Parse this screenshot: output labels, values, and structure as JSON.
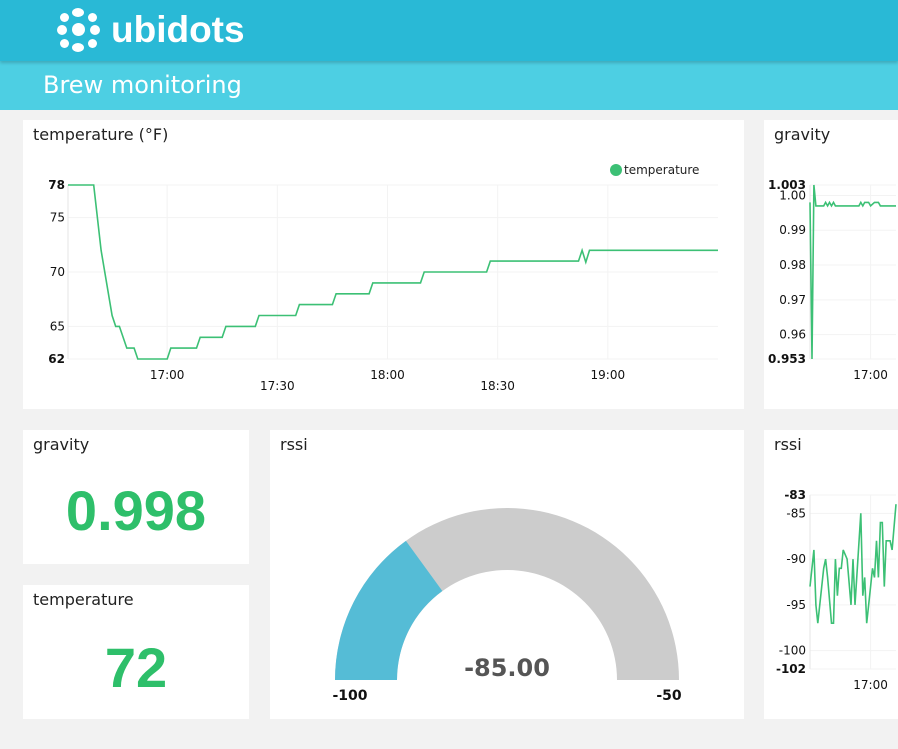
{
  "header": {
    "logo_text": "ubidots",
    "dashboard_title": "Brew monitoring",
    "bar_color": "#29b9d6",
    "subbar_color": "#4dcfe3"
  },
  "widgets": {
    "temperature_chart": {
      "title": "temperature (°F)",
      "legend": "temperature"
    },
    "gravity_chart": {
      "title": "gravity"
    },
    "gravity_value": {
      "title": "gravity",
      "value": "0.998"
    },
    "temperature_value": {
      "title": "temperature",
      "value": "72"
    },
    "rssi_gauge": {
      "title": "rssi",
      "value": "-85.00",
      "min_label": "-100",
      "max_label": "-50",
      "min": -100,
      "max": -50,
      "fill": -85,
      "fill_color": "#55bcd6",
      "track_color": "#cccccc"
    },
    "rssi_chart": {
      "title": "rssi"
    }
  },
  "colors": {
    "line": "#3cc075",
    "value_text": "#2ebf6a"
  },
  "chart_data": [
    {
      "type": "line",
      "title": "temperature (°F)",
      "legend": [
        "temperature"
      ],
      "legend_position": "top-right",
      "xlim": [
        "16:33",
        "19:30"
      ],
      "ylim": [
        62,
        78
      ],
      "yticks": [
        {
          "v": 78,
          "label": "78",
          "bold": true
        },
        {
          "v": 75,
          "label": "75"
        },
        {
          "v": 70,
          "label": "70"
        },
        {
          "v": 65,
          "label": "65"
        },
        {
          "v": 62,
          "label": "62",
          "bold": true
        }
      ],
      "xticks": [
        {
          "t": "17:00",
          "label": "17:00",
          "row": 0
        },
        {
          "t": "17:30",
          "label": "17:30",
          "row": 1
        },
        {
          "t": "18:00",
          "label": "18:00",
          "row": 0
        },
        {
          "t": "18:30",
          "label": "18:30",
          "row": 1
        },
        {
          "t": "19:00",
          "label": "19:00",
          "row": 0
        }
      ],
      "grid": true,
      "series": [
        {
          "name": "temperature",
          "points": [
            [
              "16:33",
              78
            ],
            [
              "16:40",
              78
            ],
            [
              "16:42",
              72
            ],
            [
              "16:45",
              66
            ],
            [
              "16:46",
              65
            ],
            [
              "16:47",
              65
            ],
            [
              "16:49",
              63
            ],
            [
              "16:51",
              63
            ],
            [
              "16:52",
              62
            ],
            [
              "17:00",
              62
            ],
            [
              "17:01",
              63
            ],
            [
              "17:08",
              63
            ],
            [
              "17:09",
              64
            ],
            [
              "17:15",
              64
            ],
            [
              "17:16",
              65
            ],
            [
              "17:24",
              65
            ],
            [
              "17:25",
              66
            ],
            [
              "17:35",
              66
            ],
            [
              "17:36",
              67
            ],
            [
              "17:45",
              67
            ],
            [
              "17:46",
              68
            ],
            [
              "17:55",
              68
            ],
            [
              "17:56",
              69
            ],
            [
              "18:09",
              69
            ],
            [
              "18:10",
              70
            ],
            [
              "18:27",
              70
            ],
            [
              "18:28",
              71
            ],
            [
              "18:52",
              71
            ],
            [
              "18:53",
              72
            ],
            [
              "18:54",
              70.9
            ],
            [
              "18:55",
              72
            ],
            [
              "19:30",
              72
            ]
          ]
        }
      ]
    },
    {
      "type": "line",
      "title": "gravity",
      "xlim": [
        "16:29",
        "17:13"
      ],
      "ylim": [
        0.953,
        1.003
      ],
      "yticks": [
        {
          "v": 1.003,
          "label": "1.003",
          "bold": true
        },
        {
          "v": 1.0,
          "label": "1.00"
        },
        {
          "v": 0.99,
          "label": "0.99"
        },
        {
          "v": 0.98,
          "label": "0.98"
        },
        {
          "v": 0.97,
          "label": "0.97"
        },
        {
          "v": 0.96,
          "label": "0.96"
        },
        {
          "v": 0.953,
          "label": "0.953",
          "bold": true
        }
      ],
      "xticks": [
        {
          "t": "17:00",
          "label": "17:00",
          "row": 0
        }
      ],
      "grid": true,
      "series": [
        {
          "points": [
            [
              "16:29",
              0.998
            ],
            [
              "16:30",
              0.953
            ],
            [
              "16:31",
              1.003
            ],
            [
              "16:32",
              0.997
            ],
            [
              "16:36",
              0.997
            ],
            [
              "16:37",
              0.998
            ],
            [
              "16:38",
              0.997
            ],
            [
              "16:39",
              0.998
            ],
            [
              "16:40",
              0.997
            ],
            [
              "16:41",
              0.998
            ],
            [
              "16:42",
              0.997
            ],
            [
              "16:54",
              0.997
            ],
            [
              "16:55",
              0.998
            ],
            [
              "16:56",
              0.997
            ],
            [
              "16:57",
              0.998
            ],
            [
              "16:59",
              0.998
            ],
            [
              "17:00",
              0.997
            ],
            [
              "17:02",
              0.998
            ],
            [
              "17:04",
              0.998
            ],
            [
              "17:05",
              0.997
            ],
            [
              "17:13",
              0.997
            ]
          ]
        }
      ]
    },
    {
      "type": "line",
      "title": "rssi",
      "xlim": [
        "16:29",
        "17:13"
      ],
      "ylim": [
        -102,
        -83
      ],
      "yticks": [
        {
          "v": -83,
          "label": "-83",
          "bold": true
        },
        {
          "v": -85,
          "label": "-85"
        },
        {
          "v": -90,
          "label": "-90"
        },
        {
          "v": -95,
          "label": "-95"
        },
        {
          "v": -100,
          "label": "-100"
        },
        {
          "v": -102,
          "label": "-102",
          "bold": true
        }
      ],
      "xticks": [
        {
          "t": "17:00",
          "label": "17:00",
          "row": 0
        }
      ],
      "grid": true,
      "series": [
        {
          "points": [
            [
              "16:29",
              -93
            ],
            [
              "16:31",
              -89
            ],
            [
              "16:32",
              -95
            ],
            [
              "16:33",
              -97
            ],
            [
              "16:36",
              -91
            ],
            [
              "16:37",
              -90
            ],
            [
              "16:38",
              -92
            ],
            [
              "16:40",
              -97
            ],
            [
              "16:41",
              -97
            ],
            [
              "16:42",
              -90
            ],
            [
              "16:43",
              -94
            ],
            [
              "16:44",
              -91
            ],
            [
              "16:45",
              -91
            ],
            [
              "16:46",
              -89
            ],
            [
              "16:48",
              -90
            ],
            [
              "16:50",
              -95
            ],
            [
              "16:51",
              -90
            ],
            [
              "16:52",
              -95
            ],
            [
              "16:55",
              -85
            ],
            [
              "16:56",
              -94
            ],
            [
              "16:57",
              -92
            ],
            [
              "16:58",
              -97
            ],
            [
              "17:00",
              -93
            ],
            [
              "17:01",
              -91
            ],
            [
              "17:02",
              -92
            ],
            [
              "17:03",
              -88
            ],
            [
              "17:04",
              -92
            ],
            [
              "17:05",
              -86
            ],
            [
              "17:06",
              -86
            ],
            [
              "17:07",
              -93
            ],
            [
              "17:08",
              -88
            ],
            [
              "17:10",
              -88
            ],
            [
              "17:11",
              -89
            ],
            [
              "17:13",
              -84
            ]
          ]
        }
      ]
    }
  ]
}
